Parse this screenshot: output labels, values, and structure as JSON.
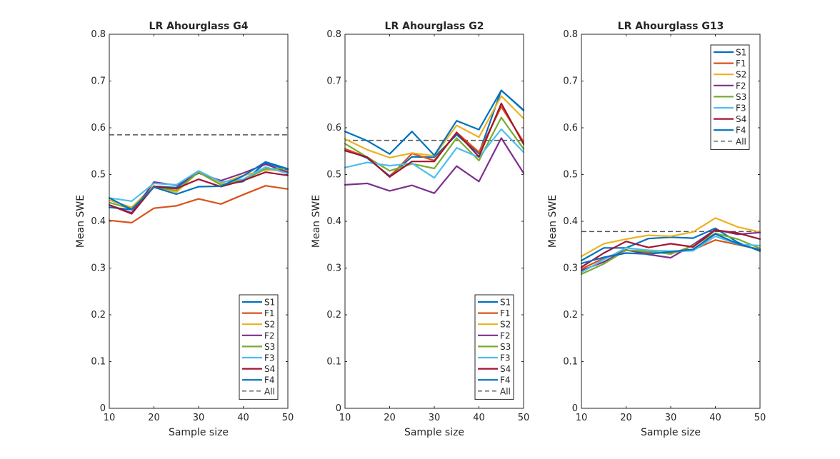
{
  "figure": {
    "background": "#ffffff"
  },
  "series_styles": [
    {
      "name": "S1",
      "color": "#0072BD",
      "dash": "solid"
    },
    {
      "name": "F1",
      "color": "#D95319",
      "dash": "solid"
    },
    {
      "name": "S2",
      "color": "#EDB120",
      "dash": "solid"
    },
    {
      "name": "F2",
      "color": "#7E2F8E",
      "dash": "solid"
    },
    {
      "name": "S3",
      "color": "#77AC30",
      "dash": "solid"
    },
    {
      "name": "F3",
      "color": "#4DBEEE",
      "dash": "solid"
    },
    {
      "name": "S4",
      "color": "#A2142F",
      "dash": "solid"
    },
    {
      "name": "F4",
      "color": "#0072BD",
      "dash": "solid"
    },
    {
      "name": "All",
      "color": "#555555",
      "dash": "dashed"
    }
  ],
  "chart_data": [
    {
      "type": "line",
      "title": "LR Ahourglass G4",
      "xlabel": "Sample size",
      "ylabel": "Mean SWE",
      "xlim": [
        10,
        50
      ],
      "ylim": [
        0,
        0.8
      ],
      "xticks": [
        "10",
        "20",
        "30",
        "40",
        "50"
      ],
      "yticks": [
        "0",
        "0.1",
        "0.2",
        "0.3",
        "0.4",
        "0.5",
        "0.6",
        "0.7",
        "0.8"
      ],
      "legend_location": "bottom-right",
      "x": [
        10,
        15,
        20,
        25,
        30,
        35,
        40,
        45,
        50
      ],
      "series": [
        {
          "name": "S1",
          "values": [
            0.43,
            0.425,
            0.475,
            0.472,
            0.505,
            0.478,
            0.485,
            0.525,
            0.51
          ]
        },
        {
          "name": "F1",
          "values": [
            0.402,
            0.397,
            0.428,
            0.433,
            0.448,
            0.437,
            0.457,
            0.476,
            0.469
          ]
        },
        {
          "name": "S2",
          "values": [
            0.445,
            0.43,
            0.476,
            0.462,
            0.506,
            0.481,
            0.498,
            0.51,
            0.508
          ]
        },
        {
          "name": "F2",
          "values": [
            0.435,
            0.418,
            0.484,
            0.477,
            0.503,
            0.487,
            0.503,
            0.522,
            0.505
          ]
        },
        {
          "name": "S3",
          "values": [
            0.44,
            0.427,
            0.473,
            0.466,
            0.505,
            0.478,
            0.488,
            0.512,
            0.513
          ]
        },
        {
          "name": "F3",
          "values": [
            0.45,
            0.443,
            0.481,
            0.478,
            0.508,
            0.484,
            0.49,
            0.516,
            0.502
          ]
        },
        {
          "name": "S4",
          "values": [
            0.435,
            0.416,
            0.474,
            0.47,
            0.49,
            0.474,
            0.487,
            0.505,
            0.498
          ]
        },
        {
          "name": "F4",
          "values": [
            0.45,
            0.425,
            0.473,
            0.458,
            0.474,
            0.475,
            0.497,
            0.527,
            0.512
          ]
        }
      ],
      "reference": {
        "name": "All",
        "value": 0.585
      }
    },
    {
      "type": "line",
      "title": "LR Ahourglass G2",
      "xlabel": "Sample size",
      "ylabel": "Mean SWE",
      "xlim": [
        10,
        50
      ],
      "ylim": [
        0,
        0.8
      ],
      "xticks": [
        "10",
        "20",
        "30",
        "40",
        "50"
      ],
      "yticks": [
        "0",
        "0.1",
        "0.2",
        "0.3",
        "0.4",
        "0.5",
        "0.6",
        "0.7",
        "0.8"
      ],
      "legend_location": "bottom-right",
      "x": [
        10,
        15,
        20,
        25,
        30,
        35,
        40,
        45,
        50
      ],
      "series": [
        {
          "name": "S1",
          "values": [
            0.555,
            0.535,
            0.497,
            0.538,
            0.537,
            0.585,
            0.545,
            0.68,
            0.638
          ]
        },
        {
          "name": "F1",
          "values": [
            0.555,
            0.537,
            0.495,
            0.545,
            0.53,
            0.59,
            0.548,
            0.645,
            0.57
          ]
        },
        {
          "name": "S2",
          "values": [
            0.576,
            0.553,
            0.536,
            0.546,
            0.54,
            0.605,
            0.58,
            0.668,
            0.62
          ]
        },
        {
          "name": "F2",
          "values": [
            0.478,
            0.481,
            0.465,
            0.477,
            0.46,
            0.518,
            0.485,
            0.578,
            0.503
          ]
        },
        {
          "name": "S3",
          "values": [
            0.566,
            0.537,
            0.508,
            0.523,
            0.513,
            0.578,
            0.53,
            0.622,
            0.555
          ]
        },
        {
          "name": "F3",
          "values": [
            0.515,
            0.526,
            0.519,
            0.524,
            0.493,
            0.557,
            0.537,
            0.597,
            0.548
          ]
        },
        {
          "name": "S4",
          "values": [
            0.551,
            0.537,
            0.495,
            0.528,
            0.528,
            0.59,
            0.538,
            0.652,
            0.565
          ]
        },
        {
          "name": "F4",
          "values": [
            0.592,
            0.572,
            0.544,
            0.592,
            0.541,
            0.615,
            0.596,
            0.68,
            0.637
          ]
        }
      ],
      "reference": {
        "name": "All",
        "value": 0.573
      }
    },
    {
      "type": "line",
      "title": "LR Ahourglass G13",
      "xlabel": "Sample size",
      "ylabel": "Mean SWE",
      "xlim": [
        10,
        50
      ],
      "ylim": [
        0,
        0.8
      ],
      "xticks": [
        "10",
        "20",
        "30",
        "40",
        "50"
      ],
      "yticks": [
        "0",
        "0.1",
        "0.2",
        "0.3",
        "0.4",
        "0.5",
        "0.6",
        "0.7",
        "0.8"
      ],
      "legend_location": "top-right",
      "x": [
        10,
        15,
        20,
        25,
        30,
        35,
        40,
        45,
        50
      ],
      "series": [
        {
          "name": "S1",
          "values": [
            0.316,
            0.343,
            0.343,
            0.363,
            0.366,
            0.364,
            0.385,
            0.355,
            0.336
          ]
        },
        {
          "name": "F1",
          "values": [
            0.298,
            0.321,
            0.338,
            0.333,
            0.333,
            0.339,
            0.36,
            0.35,
            0.34
          ]
        },
        {
          "name": "S2",
          "values": [
            0.325,
            0.352,
            0.362,
            0.37,
            0.368,
            0.377,
            0.407,
            0.388,
            0.377
          ]
        },
        {
          "name": "F2",
          "values": [
            0.295,
            0.313,
            0.339,
            0.329,
            0.322,
            0.35,
            0.382,
            0.372,
            0.376
          ]
        },
        {
          "name": "S3",
          "values": [
            0.287,
            0.309,
            0.338,
            0.336,
            0.33,
            0.348,
            0.374,
            0.362,
            0.342
          ]
        },
        {
          "name": "F3",
          "values": [
            0.291,
            0.318,
            0.343,
            0.338,
            0.336,
            0.337,
            0.368,
            0.351,
            0.348
          ]
        },
        {
          "name": "S4",
          "values": [
            0.302,
            0.332,
            0.357,
            0.344,
            0.352,
            0.345,
            0.381,
            0.375,
            0.362
          ]
        },
        {
          "name": "F4",
          "values": [
            0.31,
            0.323,
            0.332,
            0.33,
            0.335,
            0.34,
            0.373,
            0.352,
            0.338
          ]
        }
      ],
      "reference": {
        "name": "All",
        "value": 0.378
      }
    }
  ]
}
